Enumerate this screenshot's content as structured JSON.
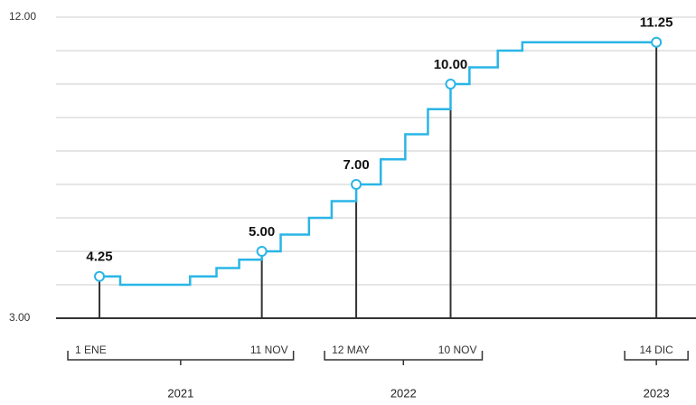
{
  "chart_data": {
    "type": "step",
    "x": [
      2021.0,
      2021.11,
      2021.48,
      2021.62,
      2021.74,
      2021.86,
      2021.96,
      2022.11,
      2022.23,
      2022.36,
      2022.49,
      2022.62,
      2022.74,
      2022.86,
      2022.96,
      2023.11,
      2023.24,
      2023.95
    ],
    "values": [
      4.25,
      4.0,
      4.25,
      4.5,
      4.75,
      5.0,
      5.5,
      6.0,
      6.5,
      7.0,
      7.75,
      8.5,
      9.25,
      10.0,
      10.5,
      11.0,
      11.25,
      11.25
    ],
    "value_labels": [
      "4.25",
      null,
      null,
      null,
      null,
      "5.00",
      null,
      null,
      null,
      "7.00",
      null,
      null,
      null,
      "10.00",
      null,
      null,
      null,
      "11.25"
    ],
    "color": "#29b5e6",
    "xlim": [
      2020.77,
      2024.16
    ],
    "ylim": [
      3,
      12
    ],
    "yticks": [
      {
        "value": 3,
        "label": "3.00"
      },
      {
        "value": 12,
        "label": "12.00"
      }
    ],
    "gridlines": [
      4,
      5,
      6,
      7,
      8,
      9,
      10,
      11
    ],
    "x_groups": [
      {
        "label": "2021",
        "dates": [
          {
            "x": 2021.0,
            "label": "1 ENE"
          },
          {
            "x": 2021.86,
            "label": "11 NOV"
          }
        ]
      },
      {
        "label": "2022",
        "dates": [
          {
            "x": 2022.36,
            "label": "12 MAY"
          },
          {
            "x": 2022.86,
            "label": "10 NOV"
          }
        ]
      },
      {
        "label": "2023",
        "dates": [
          {
            "x": 2023.95,
            "label": "14 DIC"
          }
        ]
      }
    ]
  }
}
